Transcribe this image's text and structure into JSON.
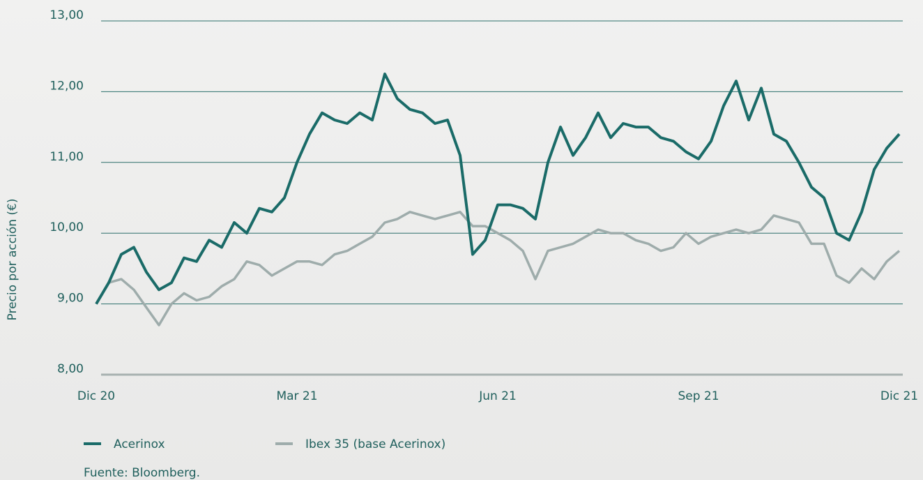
{
  "chart_data": {
    "type": "line",
    "y_label": "Precio por acción (€)",
    "source": "Fuente: Bloomberg.",
    "categories": [
      "Dic 20",
      null,
      null,
      null,
      null,
      null,
      null,
      null,
      null,
      null,
      null,
      null,
      null,
      null,
      null,
      null,
      "Mar 21",
      null,
      null,
      null,
      null,
      null,
      null,
      null,
      null,
      null,
      null,
      null,
      null,
      null,
      null,
      null,
      "Jun 21",
      null,
      null,
      null,
      null,
      null,
      null,
      null,
      null,
      null,
      null,
      null,
      null,
      null,
      null,
      null,
      "Sep 21",
      null,
      null,
      null,
      null,
      null,
      null,
      null,
      null,
      null,
      null,
      null,
      null,
      null,
      null,
      null,
      "Dic 21"
    ],
    "series": [
      {
        "name": "Acerinox",
        "color": "#1a6b68",
        "values": [
          9.0,
          9.3,
          9.7,
          9.8,
          9.45,
          9.2,
          9.3,
          9.65,
          9.6,
          9.9,
          9.8,
          10.15,
          10.0,
          10.35,
          10.3,
          10.5,
          11.0,
          11.4,
          11.7,
          11.6,
          11.55,
          11.7,
          11.6,
          12.25,
          11.9,
          11.75,
          11.7,
          11.55,
          11.6,
          11.1,
          9.7,
          9.9,
          10.4,
          10.4,
          10.35,
          10.2,
          11.0,
          11.5,
          11.1,
          11.35,
          11.7,
          11.35,
          11.55,
          11.5,
          11.5,
          11.35,
          11.3,
          11.15,
          11.05,
          11.3,
          11.8,
          12.15,
          11.6,
          12.05,
          11.4,
          11.3,
          11.0,
          10.65,
          10.5,
          10.0,
          9.9,
          10.3,
          10.9,
          11.2,
          11.4
        ]
      },
      {
        "name": "Ibex 35 (base Acerinox)",
        "color": "#9eacab",
        "values": [
          9.0,
          9.3,
          9.35,
          9.2,
          8.95,
          8.7,
          9.0,
          9.15,
          9.05,
          9.1,
          9.25,
          9.35,
          9.6,
          9.55,
          9.4,
          9.5,
          9.6,
          9.6,
          9.55,
          9.7,
          9.75,
          9.85,
          9.95,
          10.15,
          10.2,
          10.3,
          10.25,
          10.2,
          10.25,
          10.3,
          10.1,
          10.1,
          10.0,
          9.9,
          9.75,
          9.35,
          9.75,
          9.8,
          9.85,
          9.95,
          10.05,
          10.0,
          10.0,
          9.9,
          9.85,
          9.75,
          9.8,
          10.0,
          9.85,
          9.95,
          10.0,
          10.05,
          10.0,
          10.05,
          10.25,
          10.2,
          10.15,
          9.85,
          9.85,
          9.4,
          9.3,
          9.5,
          9.35,
          9.6,
          9.75
        ]
      }
    ],
    "ylim": [
      8,
      13
    ],
    "yticks": [
      {
        "value": 8,
        "label": "8,00"
      },
      {
        "value": 9,
        "label": "9,00"
      },
      {
        "value": 10,
        "label": "10,00"
      },
      {
        "value": 11,
        "label": "11,00"
      },
      {
        "value": 12,
        "label": "12,00"
      },
      {
        "value": 13,
        "label": "13,00"
      }
    ],
    "grid": true
  }
}
